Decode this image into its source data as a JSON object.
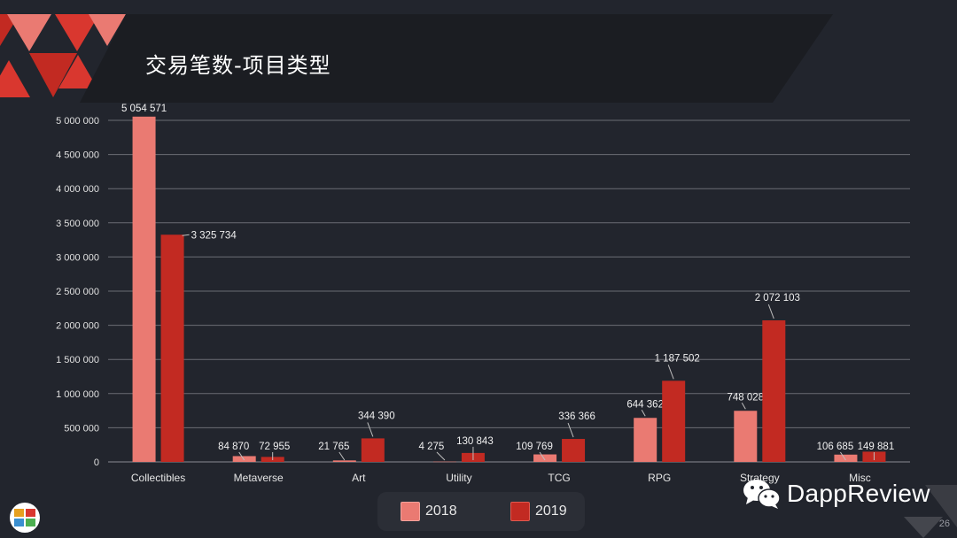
{
  "slide": {
    "title": "交易笔数-项目类型",
    "page_number": "26",
    "brand": "DappReview"
  },
  "colors": {
    "background": "#22252d",
    "series_2018": "#ea7a72",
    "series_2019": "#c22a22",
    "grid": "#6b6d74",
    "accent_red": "#d9372f"
  },
  "icons": {
    "wechat": "wechat-icon",
    "corner": "dappreview-logo-icon"
  },
  "chart_data": {
    "type": "bar",
    "title": "交易笔数-项目类型",
    "categories": [
      "Collectibles",
      "Metaverse",
      "Art",
      "Utility",
      "TCG",
      "RPG",
      "Strategy",
      "Misc"
    ],
    "series": [
      {
        "name": "2018",
        "values": [
          5054571,
          84870,
          21765,
          4275,
          109769,
          644362,
          748028,
          106685
        ],
        "labels": [
          "5 054 571",
          "84 870",
          "21 765",
          "4 275",
          "109 769",
          "644 362",
          "748 028",
          "106 685"
        ]
      },
      {
        "name": "2019",
        "values": [
          3325734,
          72955,
          344390,
          130843,
          336366,
          1187502,
          2072103,
          149881
        ],
        "labels": [
          "3 325 734",
          "72 955",
          "344 390",
          "130 843",
          "336 366",
          "1 187 502",
          "2 072 103",
          "149 881"
        ]
      }
    ],
    "ylim": [
      0,
      5000000
    ],
    "yticks": [
      "0",
      "500 000",
      "1 000 000",
      "1 500 000",
      "2 000 000",
      "2 500 000",
      "3 000 000",
      "3 500 000",
      "4 000 000",
      "4 500 000",
      "5 000 000"
    ],
    "grid": true,
    "legend": "bottom-center"
  }
}
